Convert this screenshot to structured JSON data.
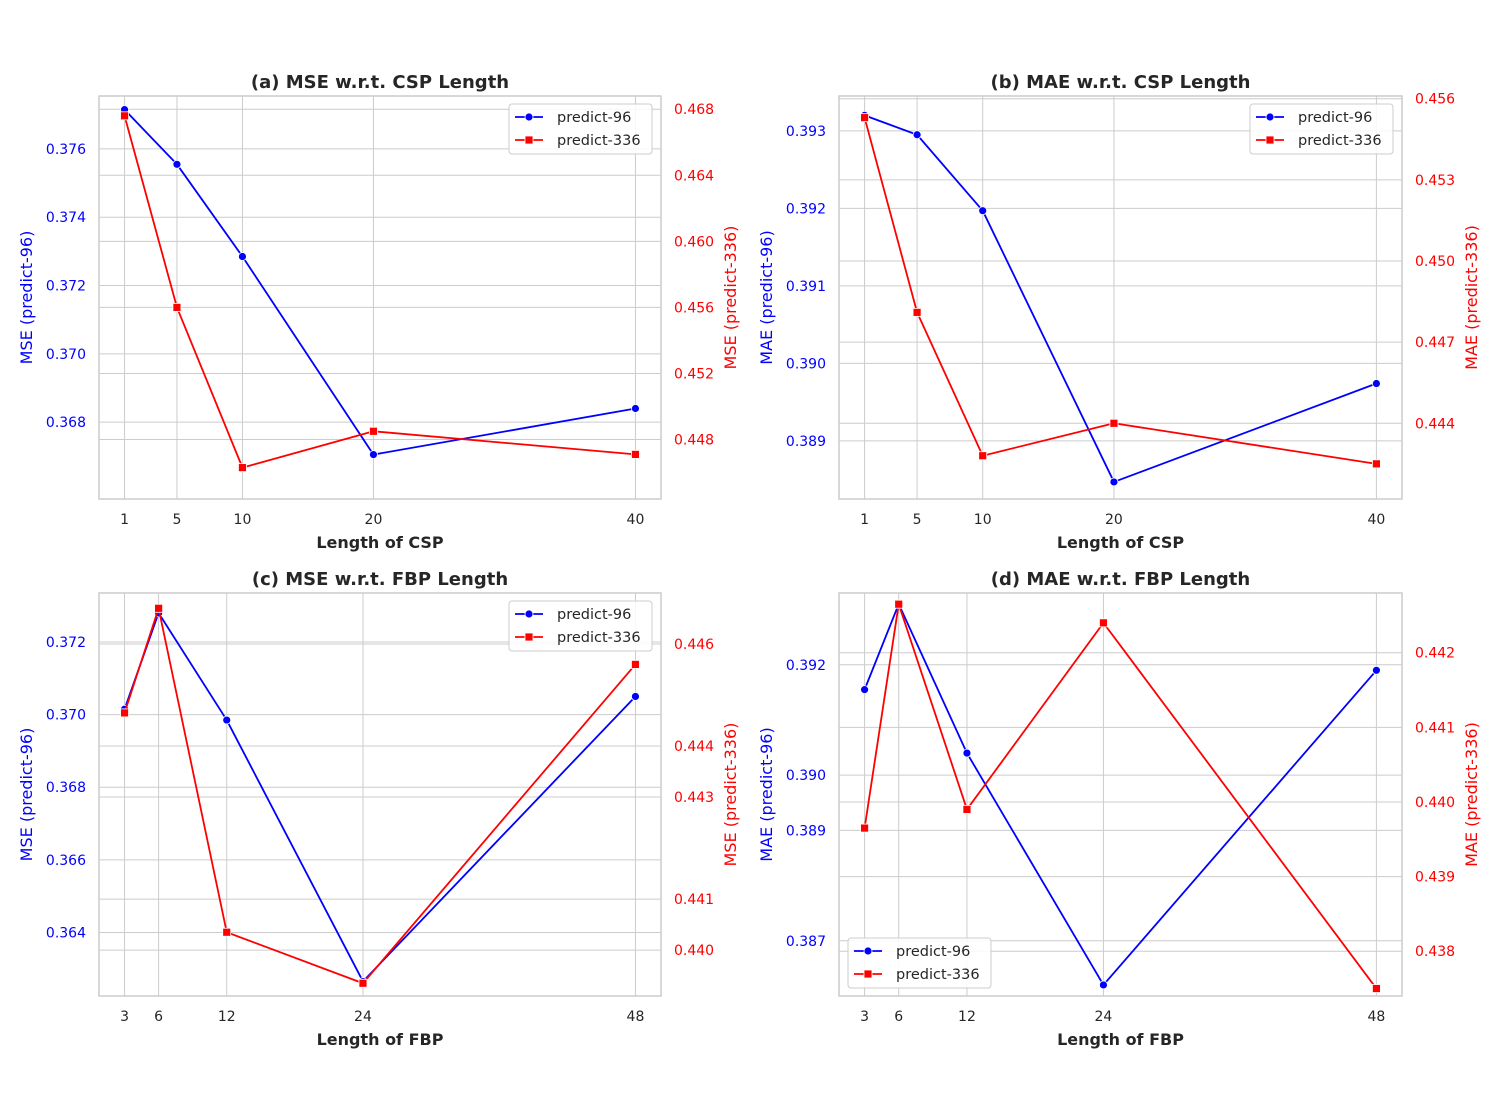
{
  "colors": {
    "predict-96": "#0000ff",
    "predict-336": "#ff0000",
    "grid": "#cccccc",
    "frame": "#cccccc",
    "text": "#262626"
  },
  "chart_data": [
    {
      "id": "a",
      "type": "line",
      "title": "(a) MSE w.r.t. CSP Length",
      "xlabel": "Length of CSP",
      "ylabel_left": "MSE (predict-96)",
      "ylabel_right": "MSE (predict-336)",
      "x": [
        1,
        5,
        10,
        20,
        40
      ],
      "xlim": [
        -0.95,
        41.95
      ],
      "left_ylim": [
        0.36575,
        0.37755
      ],
      "right_ylim": [
        0.4444,
        0.4688
      ],
      "left_ticks": [
        "0.368",
        "0.370",
        "0.372",
        "0.374",
        "0.376"
      ],
      "right_ticks": [
        "0.448",
        "0.452",
        "0.456",
        "0.460",
        "0.464",
        "0.468"
      ],
      "series": [
        {
          "name": "predict-96",
          "axis": "left",
          "marker": "circle",
          "values": [
            0.37715,
            0.37555,
            0.37285,
            0.36705,
            0.3684
          ]
        },
        {
          "name": "predict-336",
          "axis": "right",
          "marker": "square",
          "values": [
            0.4676,
            0.456,
            0.4463,
            0.4485,
            0.4471
          ]
        }
      ],
      "legend": "top-right"
    },
    {
      "id": "b",
      "type": "line",
      "title": "(b) MAE w.r.t. CSP Length",
      "xlabel": "Length of CSP",
      "ylabel_left": "MAE (predict-96)",
      "ylabel_right": "MAE (predict-336)",
      "x": [
        1,
        5,
        10,
        20,
        40
      ],
      "xlim": [
        -0.95,
        41.95
      ],
      "left_ylim": [
        0.38825,
        0.39345
      ],
      "right_ylim": [
        0.4412,
        0.4561
      ],
      "left_ticks": [
        "0.389",
        "0.390",
        "0.391",
        "0.392",
        "0.393"
      ],
      "right_ticks": [
        "0.444",
        "0.447",
        "0.450",
        "0.453",
        "0.456"
      ],
      "series": [
        {
          "name": "predict-96",
          "axis": "left",
          "marker": "circle",
          "values": [
            0.3932,
            0.39295,
            0.39197,
            0.38847,
            0.38974
          ]
        },
        {
          "name": "predict-336",
          "axis": "right",
          "marker": "square",
          "values": [
            0.4553,
            0.4481,
            0.4428,
            0.444,
            0.4425
          ]
        }
      ],
      "legend": "top-right"
    },
    {
      "id": "c",
      "type": "line",
      "title": "(c) MSE w.r.t. FBP Length",
      "xlabel": "Length of FBP",
      "ylabel_left": "MSE (predict-96)",
      "ylabel_right": "MSE (predict-336)",
      "x": [
        3,
        6,
        12,
        24,
        48
      ],
      "xlim": [
        0.75,
        50.25
      ],
      "left_ylim": [
        0.36225,
        0.37335
      ],
      "right_ylim": [
        0.4391,
        0.447
      ],
      "left_ticks": [
        "0.364",
        "0.366",
        "0.368",
        "0.370",
        "0.372"
      ],
      "right_ticks": [
        "0.440",
        "0.441",
        "0.443",
        "0.444",
        "0.446"
      ],
      "series": [
        {
          "name": "predict-96",
          "axis": "left",
          "marker": "circle",
          "values": [
            0.37015,
            0.3728,
            0.36985,
            0.36265,
            0.3705
          ]
        },
        {
          "name": "predict-336",
          "axis": "right",
          "marker": "square",
          "values": [
            0.44465,
            0.4467,
            0.44035,
            0.43935,
            0.4456
          ]
        }
      ],
      "legend": "top-right"
    },
    {
      "id": "d",
      "type": "line",
      "title": "(d) MAE w.r.t. FBP Length",
      "xlabel": "Length of FBP",
      "ylabel_left": "MAE (predict-96)",
      "ylabel_right": "MAE (predict-336)",
      "x": [
        3,
        6,
        12,
        24,
        48
      ],
      "xlim": [
        0.75,
        50.25
      ],
      "left_ylim": [
        0.386,
        0.3933
      ],
      "right_ylim": [
        0.4374,
        0.4428
      ],
      "left_ticks": [
        "0.387",
        "0.389",
        "0.390",
        "0.392"
      ],
      "right_ticks": [
        "0.438",
        "0.439",
        "0.440",
        "0.441",
        "0.442"
      ],
      "series": [
        {
          "name": "predict-96",
          "axis": "left",
          "marker": "circle",
          "values": [
            0.39155,
            0.3931,
            0.3904,
            0.3862,
            0.3919
          ]
        },
        {
          "name": "predict-336",
          "axis": "right",
          "marker": "square",
          "values": [
            0.43965,
            0.44265,
            0.4399,
            0.4424,
            0.4375
          ]
        }
      ],
      "legend": "bottom-left"
    }
  ]
}
